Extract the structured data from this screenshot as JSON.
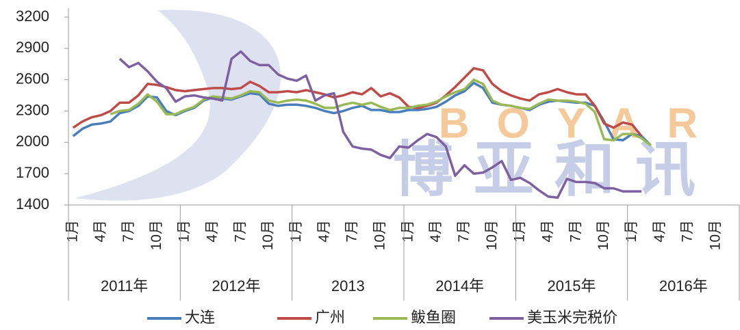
{
  "chart_data": {
    "type": "line",
    "categories": [
      "1月",
      null,
      null,
      "4月",
      null,
      null,
      "7月",
      null,
      null,
      "10月",
      null,
      null,
      "1月",
      null,
      null,
      "4月",
      null,
      null,
      "7月",
      null,
      null,
      "10月",
      null,
      null,
      "1月",
      null,
      null,
      "4月",
      null,
      null,
      "7月",
      null,
      null,
      "10月",
      null,
      null,
      "1月",
      null,
      null,
      "4月",
      null,
      null,
      "7月",
      null,
      null,
      "10月",
      null,
      null,
      "1月",
      null,
      null,
      "4月",
      null,
      null,
      "7月",
      null,
      null,
      "10月",
      null,
      null,
      "1月",
      null,
      null,
      "4月",
      null,
      null,
      "7月",
      null,
      null,
      "10月",
      null,
      null
    ],
    "x_groups": [
      "2011年",
      "2012年",
      "2013",
      "2014年",
      "2015年",
      "2016年"
    ],
    "ylim": [
      1400,
      3200
    ],
    "yticks": [
      1400,
      1700,
      2000,
      2300,
      2600,
      2900,
      3200
    ],
    "watermark": {
      "latin": "BOYAR",
      "chinese": "博亚和讯"
    },
    "series": [
      {
        "name": "大连",
        "color": "#4a7ebb",
        "values": [
          2060,
          2130,
          2170,
          2180,
          2200,
          2280,
          2300,
          2350,
          2440,
          2430,
          2300,
          2260,
          2300,
          2330,
          2400,
          2430,
          2420,
          2410,
          2440,
          2470,
          2460,
          2370,
          2350,
          2360,
          2360,
          2350,
          2330,
          2300,
          2280,
          2300,
          2330,
          2350,
          2310,
          2310,
          2290,
          2290,
          2310,
          2310,
          2320,
          2340,
          2390,
          2450,
          2490,
          2570,
          2520,
          2380,
          2360,
          2350,
          2330,
          2310,
          2360,
          2390,
          2400,
          2390,
          2380,
          2380,
          2350,
          2200,
          2030,
          2020,
          2080,
          2060,
          1970,
          null,
          null,
          null,
          null,
          null,
          null,
          null,
          null,
          null
        ]
      },
      {
        "name": "广州",
        "color": "#be4b48",
        "values": [
          2140,
          2200,
          2240,
          2260,
          2300,
          2380,
          2380,
          2450,
          2560,
          2550,
          2530,
          2500,
          2490,
          2500,
          2510,
          2520,
          2520,
          2510,
          2520,
          2580,
          2540,
          2480,
          2480,
          2490,
          2480,
          2500,
          2480,
          2460,
          2430,
          2450,
          2480,
          2460,
          2520,
          2440,
          2470,
          2430,
          2340,
          2330,
          2350,
          2380,
          2450,
          2530,
          2620,
          2710,
          2690,
          2560,
          2490,
          2450,
          2420,
          2400,
          2460,
          2480,
          2510,
          2480,
          2460,
          2460,
          2350,
          2180,
          2140,
          2190,
          2170,
          2060,
          null,
          null,
          null,
          null,
          null,
          null,
          null,
          null,
          null,
          null
        ]
      },
      {
        "name": "鲅鱼圈",
        "color": "#98b954",
        "values": [
          null,
          null,
          null,
          null,
          2270,
          2300,
          2310,
          2370,
          2460,
          2390,
          2270,
          2270,
          2310,
          2340,
          2410,
          2440,
          2430,
          2420,
          2450,
          2490,
          2480,
          2400,
          2380,
          2400,
          2410,
          2400,
          2370,
          2330,
          2330,
          2360,
          2380,
          2360,
          2380,
          2340,
          2310,
          2330,
          2330,
          2350,
          2360,
          2390,
          2440,
          2480,
          2510,
          2600,
          2560,
          2400,
          2360,
          2350,
          2330,
          2320,
          2370,
          2410,
          2400,
          2400,
          2390,
          2370,
          2290,
          2030,
          2020,
          2080,
          2080,
          2040,
          1970,
          null,
          null,
          null,
          null,
          null,
          null,
          null,
          null,
          null
        ]
      },
      {
        "name": "美玉米完税价",
        "color": "#7d60a0",
        "values": [
          null,
          null,
          null,
          null,
          null,
          2800,
          2720,
          2760,
          2680,
          2580,
          2520,
          2390,
          2440,
          2450,
          2430,
          2420,
          2400,
          2800,
          2870,
          2780,
          2740,
          2740,
          2650,
          2610,
          2590,
          2640,
          2400,
          2450,
          2470,
          2100,
          1960,
          1940,
          1930,
          1880,
          1850,
          1960,
          1950,
          2020,
          2080,
          2050,
          1960,
          1680,
          1780,
          1700,
          1710,
          1760,
          1820,
          1640,
          1660,
          1610,
          1540,
          1480,
          1470,
          1650,
          1620,
          1620,
          1610,
          1560,
          1560,
          1530,
          1530,
          1530,
          null,
          null,
          null,
          null,
          null,
          null,
          null,
          null,
          null,
          null
        ]
      }
    ]
  }
}
